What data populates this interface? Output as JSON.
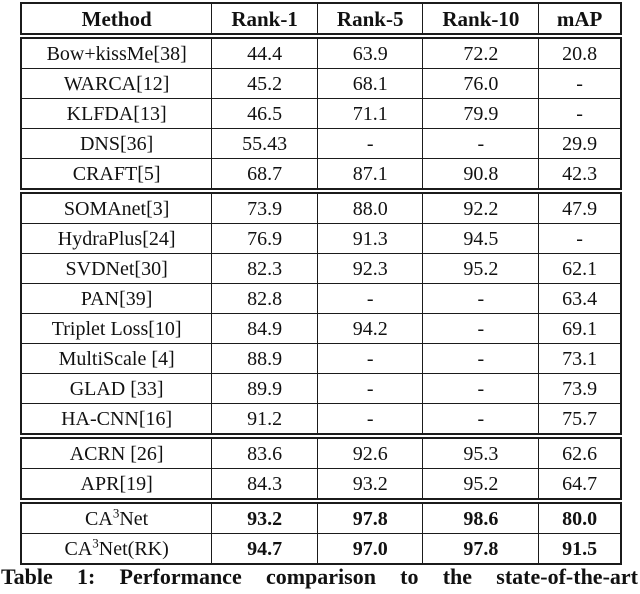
{
  "caption": {
    "text": "Table 1: Performance comparison to the state-of-the-art"
  },
  "table": {
    "columns": [
      "Method",
      "Rank-1",
      "Rank-5",
      "Rank-10",
      "mAP"
    ],
    "groups": [
      {
        "name": "group-1",
        "rows": [
          {
            "method": "Bow+kissMe[38]",
            "values": [
              "44.4",
              "63.9",
              "72.2",
              "20.8"
            ],
            "bold": false
          },
          {
            "method": "WARCA[12]",
            "values": [
              "45.2",
              "68.1",
              "76.0",
              "-"
            ],
            "bold": false
          },
          {
            "method": "KLFDA[13]",
            "values": [
              "46.5",
              "71.1",
              "79.9",
              "-"
            ],
            "bold": false
          },
          {
            "method": "DNS[36]",
            "values": [
              "55.43",
              "-",
              "-",
              "29.9"
            ],
            "bold": false
          },
          {
            "method": "CRAFT[5]",
            "values": [
              "68.7",
              "87.1",
              "90.8",
              "42.3"
            ],
            "bold": false
          }
        ]
      },
      {
        "name": "group-2",
        "rows": [
          {
            "method": "SOMAnet[3]",
            "values": [
              "73.9",
              "88.0",
              "92.2",
              "47.9"
            ],
            "bold": false
          },
          {
            "method": "HydraPlus[24]",
            "values": [
              "76.9",
              "91.3",
              "94.5",
              "-"
            ],
            "bold": false
          },
          {
            "method": "SVDNet[30]",
            "values": [
              "82.3",
              "92.3",
              "95.2",
              "62.1"
            ],
            "bold": false
          },
          {
            "method": "PAN[39]",
            "values": [
              "82.8",
              "-",
              "-",
              "63.4"
            ],
            "bold": false
          },
          {
            "method": "Triplet Loss[10]",
            "values": [
              "84.9",
              "94.2",
              "-",
              "69.1"
            ],
            "bold": false
          },
          {
            "method": "MultiScale [4]",
            "values": [
              "88.9",
              "-",
              "-",
              "73.1"
            ],
            "bold": false
          },
          {
            "method": "GLAD [33]",
            "values": [
              "89.9",
              "-",
              "-",
              "73.9"
            ],
            "bold": false
          },
          {
            "method": "HA-CNN[16]",
            "values": [
              "91.2",
              "-",
              "-",
              "75.7"
            ],
            "bold": false
          }
        ]
      },
      {
        "name": "group-3",
        "rows": [
          {
            "method": "ACRN [26]",
            "values": [
              "83.6",
              "92.6",
              "95.3",
              "62.6"
            ],
            "bold": false
          },
          {
            "method": "APR[19]",
            "values": [
              "84.3",
              "93.2",
              "95.2",
              "64.7"
            ],
            "bold": false
          }
        ]
      },
      {
        "name": "group-4",
        "rows": [
          {
            "method": "CA^3Net",
            "values": [
              "93.2",
              "97.8",
              "98.6",
              "80.0"
            ],
            "bold": true
          },
          {
            "method": "CA^3Net(RK)",
            "values": [
              "94.7",
              "97.0",
              "97.8",
              "91.5"
            ],
            "bold": true
          }
        ]
      }
    ]
  }
}
